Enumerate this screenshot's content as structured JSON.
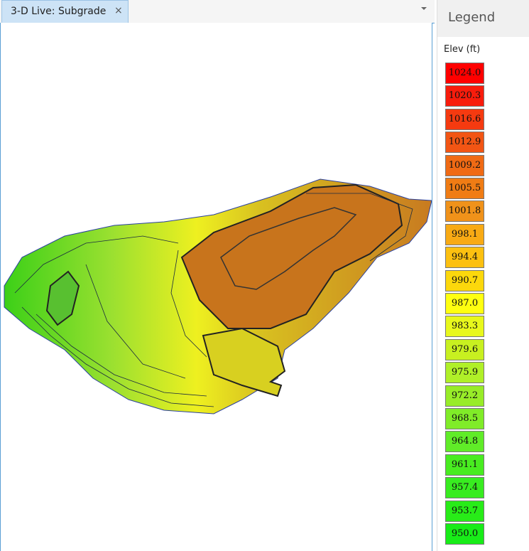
{
  "tab": {
    "title": "3-D Live: Subgrade",
    "close": "×"
  },
  "legend": {
    "title": "Legend",
    "label": "Elev (ft)",
    "items": [
      {
        "label": "1024.0",
        "color": "#ff0000"
      },
      {
        "label": "1020.3",
        "color": "#f81c0c"
      },
      {
        "label": "1016.6",
        "color": "#f53a10"
      },
      {
        "label": "1012.9",
        "color": "#f25514"
      },
      {
        "label": "1009.2",
        "color": "#f06a14"
      },
      {
        "label": "1005.5",
        "color": "#f07c14"
      },
      {
        "label": "1001.8",
        "color": "#f0921a"
      },
      {
        "label": "998.1",
        "color": "#f8aa14"
      },
      {
        "label": "994.4",
        "color": "#fcc010"
      },
      {
        "label": "990.7",
        "color": "#fcd80c"
      },
      {
        "label": "987.0",
        "color": "#ffff10"
      },
      {
        "label": "983.3",
        "color": "#e8f81c"
      },
      {
        "label": "979.6",
        "color": "#c8f020"
      },
      {
        "label": "975.9",
        "color": "#b0f028"
      },
      {
        "label": "972.2",
        "color": "#98ec28"
      },
      {
        "label": "968.5",
        "color": "#80ec28"
      },
      {
        "label": "964.8",
        "color": "#60ec28"
      },
      {
        "label": "961.1",
        "color": "#48ec20"
      },
      {
        "label": "957.4",
        "color": "#38ec20"
      },
      {
        "label": "953.7",
        "color": "#28ec18"
      },
      {
        "label": "950.0",
        "color": "#18ec18"
      }
    ]
  }
}
